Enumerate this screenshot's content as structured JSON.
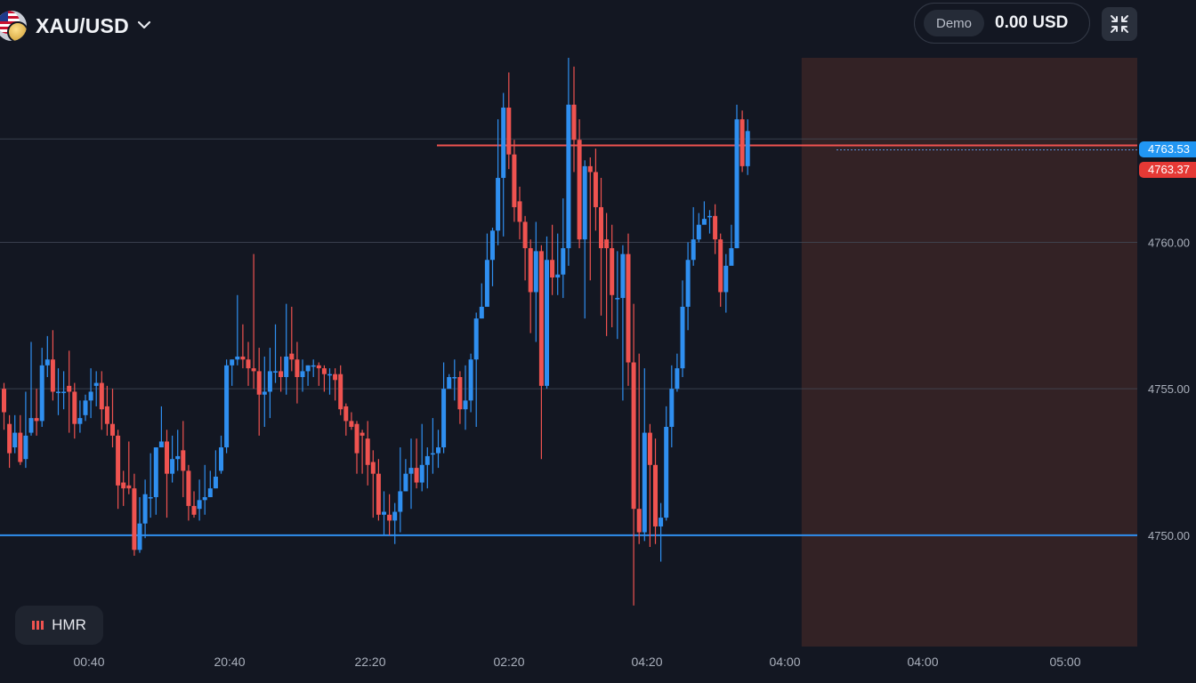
{
  "header": {
    "symbol": "XAU/USD",
    "icons": {
      "symbol_flag": "us-flag-gold-coin-icon",
      "dropdown": "chevron-down-icon",
      "collapse": "collapse-arrows-icon",
      "indicator": "bar-indicator-icon"
    }
  },
  "account": {
    "mode_label": "Demo",
    "balance": "0.00 USD"
  },
  "indicator": {
    "label": "HMR"
  },
  "colors": {
    "background": "#131722",
    "up": "#2f8ff0",
    "down": "#ef5350",
    "zone_fill": "#3a2426",
    "resistance_line": "#ef5350",
    "support_line": "#2f8ff0",
    "grid": "#434a58"
  },
  "chart_data": {
    "type": "candlestick",
    "y_axis": {
      "range": [
        4746.2,
        4766.3
      ],
      "ticks": [
        4760.0,
        4755.0,
        4750.0
      ],
      "tick_labels": [
        "4760.00",
        "4755.00",
        "4750.00"
      ]
    },
    "x_axis": {
      "tick_labels": [
        "00:40",
        "20:40",
        "22:20",
        "02:20",
        "04:20",
        "04:00",
        "04:00",
        "05:00"
      ]
    },
    "horizontal_lines": [
      {
        "price": 4750.0,
        "style": "support"
      },
      {
        "price": 4763.25,
        "style": "resistance"
      }
    ],
    "price_labels": [
      {
        "value": "4763.53",
        "price": 4763.53,
        "color": "blue"
      },
      {
        "value": "4763.37",
        "price": 4763.37,
        "color": "red"
      }
    ],
    "highlight_zone": {
      "start_candle": 148,
      "price_range": [
        4746.2,
        4766.3
      ]
    },
    "candles": [
      [
        4755.0,
        4754.2,
        4755.2,
        4753.6
      ],
      [
        4753.8,
        4752.8,
        4754.1,
        4752.3
      ],
      [
        4753.0,
        4753.5,
        4754.1,
        4752.8
      ],
      [
        4753.5,
        4752.5,
        4754.1,
        4752.4
      ],
      [
        4752.6,
        4753.4,
        4754.9,
        4752.3
      ],
      [
        4753.5,
        4754.0,
        4756.6,
        4753.4
      ],
      [
        4754.0,
        4753.9,
        4755.0,
        4753.4
      ],
      [
        4753.9,
        4755.8,
        4756.4,
        4753.7
      ],
      [
        4755.8,
        4756.0,
        4756.8,
        4755.4
      ],
      [
        4756.0,
        4754.9,
        4757.0,
        4754.6
      ],
      [
        4754.9,
        4754.9,
        4755.7,
        4754.1
      ],
      [
        4754.9,
        4754.9,
        4755.6,
        4754.3
      ],
      [
        4755.1,
        4754.9,
        4756.3,
        4753.5
      ],
      [
        4754.9,
        4753.8,
        4755.2,
        4753.3
      ],
      [
        4753.8,
        4754.0,
        4754.6,
        4753.5
      ],
      [
        4754.1,
        4754.6,
        4754.8,
        4753.9
      ],
      [
        4754.6,
        4754.9,
        4755.7,
        4754.0
      ],
      [
        4755.1,
        4755.2,
        4755.6,
        4754.4
      ],
      [
        4755.2,
        4754.3,
        4755.6,
        4753.6
      ],
      [
        4754.4,
        4753.8,
        4755.1,
        4753.4
      ],
      [
        4753.8,
        4753.4,
        4755.0,
        4753.0
      ],
      [
        4753.4,
        4751.7,
        4753.6,
        4750.9
      ],
      [
        4751.8,
        4751.6,
        4752.2,
        4751.0
      ],
      [
        4751.7,
        4751.6,
        4753.2,
        4751.4
      ],
      [
        4751.6,
        4749.5,
        4752.1,
        4749.3
      ],
      [
        4749.5,
        4750.4,
        4751.3,
        4749.4
      ],
      [
        4750.4,
        4751.4,
        4751.9,
        4749.9
      ],
      [
        4751.3,
        4751.3,
        4752.8,
        4750.6
      ],
      [
        4751.3,
        4753.0,
        4753.0,
        4750.7
      ],
      [
        4753.0,
        4753.2,
        4754.4,
        4753.0
      ],
      [
        4753.2,
        4752.1,
        4753.6,
        4750.6
      ],
      [
        4752.1,
        4752.6,
        4753.4,
        4751.8
      ],
      [
        4752.6,
        4752.7,
        4753.6,
        4752.2
      ],
      [
        4752.9,
        4752.2,
        4753.9,
        4751.3
      ],
      [
        4752.2,
        4751.0,
        4752.4,
        4750.5
      ],
      [
        4751.0,
        4750.7,
        4751.5,
        4750.6
      ],
      [
        4750.9,
        4751.2,
        4751.9,
        4750.5
      ],
      [
        4751.2,
        4751.3,
        4752.4,
        4750.7
      ],
      [
        4751.3,
        4751.6,
        4752.2,
        4751.3
      ],
      [
        4751.6,
        4752.0,
        4752.9,
        4751.6
      ],
      [
        4752.2,
        4753.0,
        4753.4,
        4752.1
      ],
      [
        4753.0,
        4755.8,
        4756.0,
        4752.8
      ],
      [
        4755.8,
        4756.0,
        4756.0,
        4755.1
      ],
      [
        4756.0,
        4756.1,
        4758.2,
        4755.8
      ],
      [
        4756.1,
        4756.0,
        4757.2,
        4755.7
      ],
      [
        4756.0,
        4755.7,
        4756.6,
        4755.1
      ],
      [
        4755.7,
        4755.6,
        4759.6,
        4755.0
      ],
      [
        4755.6,
        4754.8,
        4756.4,
        4753.4
      ],
      [
        4754.8,
        4754.9,
        4756.1,
        4753.7
      ],
      [
        4754.9,
        4755.6,
        4756.4,
        4754.0
      ],
      [
        4755.6,
        4755.6,
        4757.2,
        4755.2
      ],
      [
        4755.6,
        4755.4,
        4756.1,
        4754.9
      ],
      [
        4755.4,
        4756.1,
        4757.9,
        4754.8
      ],
      [
        4756.2,
        4756.0,
        4757.8,
        4755.6
      ],
      [
        4756.0,
        4755.4,
        4756.6,
        4754.5
      ],
      [
        4755.4,
        4755.6,
        4756.0,
        4754.9
      ],
      [
        4755.6,
        4755.8,
        4755.8,
        4755.1
      ],
      [
        4755.8,
        4755.8,
        4756.0,
        4755.4
      ],
      [
        4755.8,
        4755.7,
        4755.9,
        4755.1
      ],
      [
        4755.7,
        4755.5,
        4755.8,
        4754.9
      ],
      [
        4755.5,
        4755.5,
        4755.7,
        4754.8
      ],
      [
        4755.5,
        4755.3,
        4755.7,
        4754.6
      ],
      [
        4755.5,
        4754.3,
        4755.8,
        4754.1
      ],
      [
        4754.4,
        4753.9,
        4754.5,
        4753.4
      ],
      [
        4753.9,
        4753.7,
        4754.2,
        4753.6
      ],
      [
        4753.8,
        4752.8,
        4753.9,
        4752.1
      ],
      [
        4753.5,
        4753.4,
        4753.6,
        4752.1
      ],
      [
        4753.3,
        4752.4,
        4753.9,
        4751.7
      ],
      [
        4752.5,
        4752.1,
        4752.9,
        4750.6
      ],
      [
        4752.1,
        4750.7,
        4752.6,
        4750.5
      ],
      [
        4750.7,
        4750.8,
        4751.5,
        4750.0
      ],
      [
        4750.7,
        4750.5,
        4751.4,
        4750.0
      ],
      [
        4750.5,
        4750.8,
        4751.1,
        4749.7
      ],
      [
        4750.8,
        4751.5,
        4753.0,
        4750.1
      ],
      [
        4751.5,
        4752.1,
        4752.6,
        4751.5
      ],
      [
        4752.1,
        4752.3,
        4753.3,
        4750.9
      ],
      [
        4752.3,
        4751.8,
        4753.3,
        4751.6
      ],
      [
        4751.8,
        4752.4,
        4753.8,
        4751.5
      ],
      [
        4752.4,
        4752.7,
        4753.0,
        4751.6
      ],
      [
        4752.8,
        4752.8,
        4754.0,
        4752.1
      ],
      [
        4752.8,
        4753.0,
        4753.6,
        4752.3
      ],
      [
        4753.0,
        4755.0,
        4755.9,
        4752.8
      ],
      [
        4755.0,
        4755.4,
        4755.5,
        4755.2
      ],
      [
        4755.4,
        4755.4,
        4756.0,
        4754.6
      ],
      [
        4755.4,
        4754.3,
        4755.6,
        4753.8
      ],
      [
        4754.3,
        4754.6,
        4755.8,
        4753.6
      ],
      [
        4754.6,
        4756.0,
        4756.2,
        4754.2
      ],
      [
        4756.0,
        4757.4,
        4757.6,
        4753.7
      ],
      [
        4757.4,
        4757.8,
        4758.6,
        4757.4
      ],
      [
        4757.8,
        4759.4,
        4760.3,
        4757.8
      ],
      [
        4759.4,
        4760.4,
        4760.5,
        4758.5
      ],
      [
        4760.4,
        4762.2,
        4764.2,
        4759.9
      ],
      [
        4762.2,
        4764.6,
        4765.1,
        4760.2
      ],
      [
        4764.6,
        4763.0,
        4765.8,
        4762.5
      ],
      [
        4763.0,
        4761.2,
        4763.5,
        4760.7
      ],
      [
        4761.4,
        4760.7,
        4761.9,
        4760.1
      ],
      [
        4760.7,
        4759.8,
        4760.9,
        4758.7
      ],
      [
        4759.8,
        4758.3,
        4760.1,
        4756.9
      ],
      [
        4758.3,
        4759.7,
        4760.7,
        4756.6
      ],
      [
        4759.7,
        4755.1,
        4759.9,
        4752.6
      ],
      [
        4755.1,
        4759.4,
        4760.2,
        4755.0
      ],
      [
        4759.4,
        4758.8,
        4760.6,
        4758.2
      ],
      [
        4758.8,
        4758.9,
        4760.3,
        4758.2
      ],
      [
        4758.9,
        4759.8,
        4761.5,
        4758.1
      ],
      [
        4759.8,
        4764.7,
        4766.3,
        4759.2
      ],
      [
        4764.7,
        4763.5,
        4766.0,
        4762.4
      ],
      [
        4763.5,
        4760.1,
        4764.2,
        4759.8
      ],
      [
        4760.1,
        4762.6,
        4762.8,
        4757.4
      ],
      [
        4762.6,
        4762.4,
        4762.9,
        4758.7
      ],
      [
        4762.4,
        4761.2,
        4763.2,
        4760.4
      ],
      [
        4761.2,
        4759.8,
        4762.2,
        4757.5
      ],
      [
        4760.1,
        4759.8,
        4761.0,
        4756.8
      ],
      [
        4759.8,
        4758.2,
        4760.6,
        4757.1
      ],
      [
        4758.1,
        4758.1,
        4759.7,
        4756.7
      ],
      [
        4758.1,
        4759.6,
        4759.9,
        4754.6
      ],
      [
        4759.6,
        4755.9,
        4760.3,
        4755.1
      ],
      [
        4755.9,
        4750.9,
        4757.9,
        4747.6
      ],
      [
        4750.9,
        4750.1,
        4756.2,
        4749.7
      ],
      [
        4750.1,
        4753.5,
        4755.7,
        4749.8
      ],
      [
        4753.5,
        4752.4,
        4753.8,
        4749.6
      ],
      [
        4752.4,
        4750.3,
        4753.3,
        4749.7
      ],
      [
        4750.3,
        4750.6,
        4751.1,
        4749.1
      ],
      [
        4750.6,
        4753.7,
        4754.4,
        4750.5
      ],
      [
        4753.7,
        4755.0,
        4755.8,
        4753.0
      ],
      [
        4755.0,
        4755.7,
        4756.2,
        4754.9
      ],
      [
        4755.7,
        4757.8,
        4758.7,
        4755.4
      ],
      [
        4757.8,
        4759.4,
        4760.0,
        4757.0
      ],
      [
        4759.4,
        4760.1,
        4761.2,
        4759.2
      ],
      [
        4760.1,
        4760.6,
        4761.0,
        4760.0
      ],
      [
        4760.6,
        4760.8,
        4761.4,
        4760.7
      ],
      [
        4760.9,
        4760.9,
        4761.1,
        4760.3
      ],
      [
        4760.9,
        4760.1,
        4761.3,
        4759.6
      ],
      [
        4760.1,
        4758.3,
        4760.3,
        4757.8
      ],
      [
        4758.3,
        4759.2,
        4759.6,
        4757.6
      ],
      [
        4759.2,
        4759.8,
        4760.6,
        4759.4
      ],
      [
        4759.8,
        4764.2,
        4764.7,
        4759.8
      ],
      [
        4764.2,
        4762.6,
        4764.5,
        4762.4
      ],
      [
        4762.6,
        4763.8,
        4764.2,
        4762.3
      ]
    ]
  }
}
